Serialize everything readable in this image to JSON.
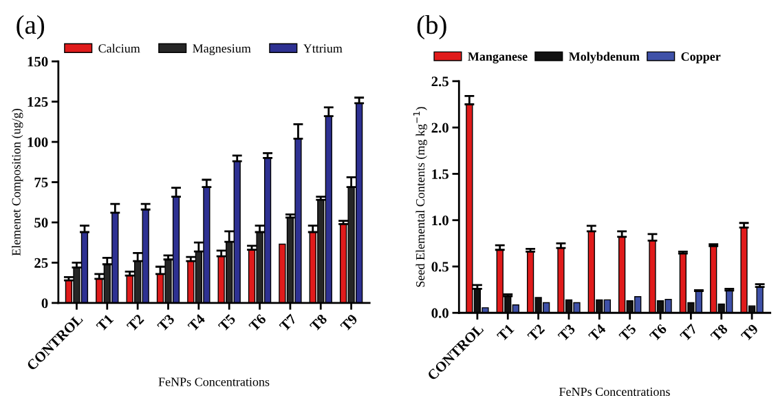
{
  "chart_data": [
    {
      "type": "bar",
      "title": "(a)",
      "xlabel": "FeNPs Concentrations",
      "ylabel": "Elemenet Composition (ug/g)",
      "categories": [
        "CONTROL",
        "T1",
        "T2",
        "T3",
        "T4",
        "T5",
        "T6",
        "T7",
        "T8",
        "T9"
      ],
      "ylim": [
        0,
        150
      ],
      "yticks": [
        0,
        25,
        50,
        75,
        100,
        125,
        150
      ],
      "legend": "top",
      "grid": false,
      "series": [
        {
          "name": "Calcium",
          "color": "#e01b1b",
          "values": [
            14,
            15,
            17,
            18,
            26,
            29,
            33,
            36.5,
            44,
            49
          ],
          "errors": [
            [
              14,
              16
            ],
            [
              15,
              18
            ],
            [
              17,
              19.5
            ],
            [
              18,
              22.5
            ],
            [
              26,
              28.5
            ],
            [
              29,
              32.5
            ],
            [
              33,
              35.5
            ],
            null,
            [
              44,
              48
            ],
            [
              49,
              51
            ]
          ]
        },
        {
          "name": "Magnesium",
          "color": "#262626",
          "values": [
            22,
            24,
            26,
            27,
            32,
            38,
            44,
            53,
            64,
            72
          ],
          "errors": [
            [
              22,
              25
            ],
            [
              24,
              28
            ],
            [
              26,
              31
            ],
            [
              27,
              29.5
            ],
            [
              32,
              37.5
            ],
            [
              38,
              44.5
            ],
            [
              44,
              48
            ],
            [
              53,
              55
            ],
            [
              64,
              66
            ],
            [
              72,
              78
            ]
          ]
        },
        {
          "name": "Yttrium",
          "color": "#2e3192",
          "values": [
            44,
            56,
            58,
            66,
            72,
            88,
            90,
            102,
            116,
            124
          ],
          "errors": [
            [
              44,
              48
            ],
            [
              56,
              61.5
            ],
            [
              58,
              61.5
            ],
            [
              66,
              71.5
            ],
            [
              72,
              76.5
            ],
            [
              88,
              91.5
            ],
            [
              90,
              93
            ],
            [
              102,
              111
            ],
            [
              116,
              121.5
            ],
            [
              124,
              127.5
            ]
          ]
        }
      ]
    },
    {
      "type": "bar",
      "title": "(b)",
      "xlabel": "FeNPs Concentrations",
      "ylabel": "Seed Elemental Contents (mg kg$^{−1}$)",
      "categories": [
        "CONTROL",
        "T1",
        "T2",
        "T3",
        "T4",
        "T5",
        "T6",
        "T7",
        "T8",
        "T9"
      ],
      "ylim": [
        0,
        2.5
      ],
      "yticks": [
        {
          "value": 0,
          "label": "0.0"
        },
        {
          "value": 0.5,
          "label": "0.5"
        },
        {
          "value": 1,
          "label": "1.0"
        },
        {
          "value": 1.5,
          "label": "1.5"
        },
        {
          "value": 2,
          "label": "2.0"
        },
        {
          "value": 2.5,
          "label": "2.5"
        }
      ],
      "legend": "top",
      "grid": false,
      "series": [
        {
          "name": "Manganese",
          "color": "#e01b1b",
          "values": [
            2.25,
            0.68,
            0.66,
            0.7,
            0.88,
            0.82,
            0.78,
            0.64,
            0.72,
            0.92
          ],
          "errors": [
            [
              2.25,
              2.34
            ],
            [
              0.68,
              0.73
            ],
            [
              0.66,
              0.69
            ],
            [
              0.7,
              0.75
            ],
            [
              0.88,
              0.94
            ],
            [
              0.82,
              0.88
            ],
            [
              0.78,
              0.85
            ],
            [
              0.64,
              0.66
            ],
            [
              0.72,
              0.74
            ],
            [
              0.92,
              0.97
            ]
          ]
        },
        {
          "name": "Molybdenum",
          "color": "#111111",
          "values": [
            0.26,
            0.18,
            0.165,
            0.14,
            0.14,
            0.13,
            0.13,
            0.11,
            0.095,
            0.075
          ],
          "errors": [
            [
              0.26,
              0.3
            ],
            [
              0.18,
              0.2
            ],
            null,
            null,
            null,
            null,
            null,
            null,
            null,
            null
          ]
        },
        {
          "name": "Copper",
          "color": "#3f51a8",
          "values": [
            0.055,
            0.085,
            0.11,
            0.11,
            0.14,
            0.175,
            0.145,
            0.235,
            0.24,
            0.28
          ],
          "errors": [
            null,
            null,
            null,
            null,
            null,
            null,
            null,
            [
              0.235,
              0.245
            ],
            [
              0.24,
              0.26
            ],
            [
              0.28,
              0.31
            ]
          ]
        }
      ]
    }
  ]
}
